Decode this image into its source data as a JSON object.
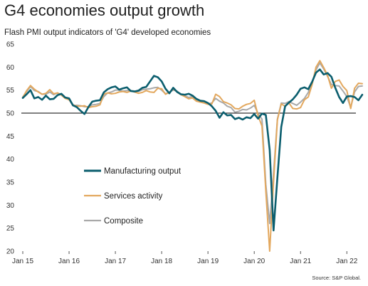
{
  "title": "G4 economies output growth",
  "subtitle": "Flash PMI output indicators of 'G4' developed economies",
  "source": "Source: S&P Global.",
  "chart_data": {
    "type": "line",
    "title": "G4 economies output growth",
    "subtitle": "Flash PMI output indicators of 'G4' developed economies",
    "xlabel": "",
    "ylabel": "",
    "ylim": [
      20,
      65
    ],
    "yticks": [
      20,
      25,
      30,
      35,
      40,
      45,
      50,
      55,
      60,
      65
    ],
    "xtick_labels": [
      "Jan 15",
      "Jan 16",
      "Jan 17",
      "Jan 18",
      "Jan 19",
      "Jan 20",
      "Jan 21",
      "Jan 22"
    ],
    "x_start": "2015-01",
    "reference_line": 50,
    "grid": false,
    "legend_position": "center-left",
    "series": [
      {
        "name": "Manufacturing output",
        "color": "#0b5e6e",
        "values": [
          53.3,
          54.1,
          55.0,
          53.2,
          53.5,
          52.9,
          53.8,
          53.0,
          53.1,
          53.9,
          54.2,
          53.4,
          53.2,
          51.7,
          51.3,
          50.5,
          49.8,
          51.3,
          52.5,
          52.7,
          52.8,
          54.5,
          55.2,
          55.6,
          55.8,
          55.1,
          55.4,
          55.6,
          54.8,
          54.7,
          54.9,
          55.5,
          55.7,
          56.9,
          58.1,
          57.8,
          56.9,
          55.3,
          54.3,
          55.5,
          54.6,
          54.1,
          54.0,
          54.2,
          53.8,
          53.1,
          52.7,
          52.6,
          52.2,
          51.5,
          50.5,
          49.0,
          50.2,
          49.5,
          49.6,
          48.7,
          49.0,
          48.6,
          49.1,
          48.9,
          49.8,
          48.8,
          49.9,
          49.6,
          42.0,
          24.5,
          36.0,
          47.0,
          51.5,
          52.3,
          53.0,
          54.0,
          55.3,
          55.6,
          55.2,
          56.8,
          58.8,
          59.5,
          58.4,
          58.7,
          57.9,
          55.5,
          53.5,
          52.2,
          53.6,
          53.7,
          53.5,
          52.8,
          54.0
        ]
      },
      {
        "name": "Services activity",
        "color": "#e3a85e",
        "values": [
          53.4,
          54.9,
          56.0,
          55.2,
          54.6,
          54.1,
          54.3,
          55.1,
          54.2,
          54.4,
          53.9,
          53.2,
          52.9,
          51.8,
          51.5,
          51.5,
          51.6,
          51.2,
          51.4,
          51.5,
          51.8,
          54.1,
          54.4,
          54.2,
          54.3,
          54.6,
          54.7,
          54.5,
          54.8,
          54.6,
          54.3,
          54.5,
          54.9,
          54.6,
          54.5,
          55.4,
          55.3,
          54.1,
          54.5,
          55.3,
          54.6,
          54.0,
          53.6,
          53.1,
          53.3,
          52.6,
          52.4,
          52.2,
          51.9,
          52.0,
          54.1,
          53.6,
          52.5,
          52.2,
          51.8,
          51.0,
          50.9,
          51.5,
          51.9,
          52.1,
          52.8,
          49.4,
          47.2,
          33.0,
          20.0,
          35.0,
          48.5,
          52.0,
          51.5,
          52.2,
          51.0,
          50.9,
          51.2,
          52.9,
          53.5,
          56.2,
          60.0,
          61.4,
          59.9,
          58.2,
          55.4,
          56.9,
          57.2,
          55.8,
          54.9,
          51.0,
          55.4,
          56.5,
          56.4
        ]
      },
      {
        "name": "Composite",
        "color": "#a9a9a9",
        "values": [
          53.5,
          54.7,
          55.8,
          54.9,
          54.7,
          54.1,
          54.1,
          54.6,
          54.0,
          54.4,
          54.0,
          53.4,
          53.0,
          51.6,
          51.7,
          51.6,
          51.4,
          51.4,
          51.8,
          51.9,
          52.1,
          53.6,
          54.4,
          54.6,
          55.0,
          55.0,
          54.8,
          54.9,
          54.9,
          54.8,
          54.7,
          55.1,
          55.2,
          55.3,
          55.5,
          55.6,
          55.0,
          54.2,
          54.6,
          55.0,
          54.8,
          54.1,
          53.8,
          53.4,
          53.6,
          52.8,
          52.6,
          52.6,
          52.0,
          52.2,
          53.2,
          52.6,
          52.2,
          51.5,
          51.2,
          50.2,
          50.4,
          50.8,
          50.7,
          51.1,
          51.7,
          49.9,
          48.7,
          34.5,
          26.0,
          37.0,
          48.7,
          52.2,
          52.1,
          52.5,
          52.1,
          51.7,
          52.4,
          53.2,
          54.5,
          56.6,
          59.4,
          60.9,
          59.6,
          58.0,
          56.2,
          56.0,
          55.9,
          54.8,
          53.6,
          51.2,
          54.6,
          55.8,
          55.9
        ]
      }
    ]
  }
}
